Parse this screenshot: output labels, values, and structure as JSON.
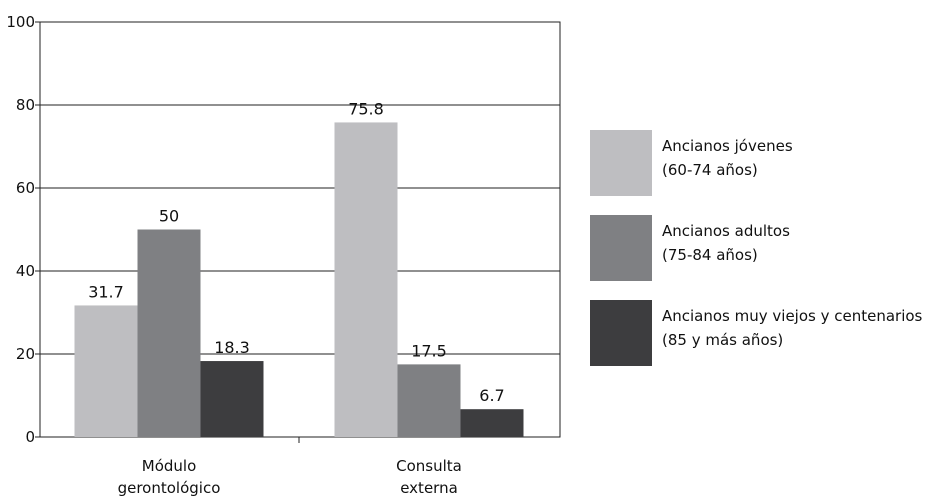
{
  "chart_data": {
    "type": "bar",
    "categories": [
      [
        "Módulo",
        "gerontológico"
      ],
      [
        "Consulta",
        "externa"
      ]
    ],
    "series": [
      {
        "name": [
          "Ancianos jóvenes",
          "(60-74 años)"
        ],
        "values": [
          31.7,
          75.8
        ],
        "color": "#bebec1"
      },
      {
        "name": [
          "Ancianos adultos",
          "(75-84 años)"
        ],
        "values": [
          50,
          17.5
        ],
        "color": "#7f8083"
      },
      {
        "name": [
          "Ancianos muy viejos y centenarios",
          "(85 y más años)"
        ],
        "values": [
          18.3,
          6.7
        ],
        "color": "#3d3d3f"
      }
    ],
    "data_labels": [
      [
        "31.7",
        "75.8"
      ],
      [
        "50",
        "17.5"
      ],
      [
        "18.3",
        "6.7"
      ]
    ],
    "ylim": [
      0,
      100
    ],
    "yticks": [
      "0",
      "20",
      "40",
      "60",
      "80",
      "100"
    ],
    "title": "",
    "xlabel": "",
    "ylabel": "",
    "grid": true,
    "legend_position": "right"
  }
}
